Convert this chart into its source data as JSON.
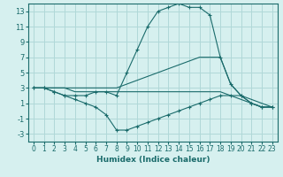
{
  "xlabel": "Humidex (Indice chaleur)",
  "bg_color": "#d6f0ef",
  "grid_color": "#b0d8d8",
  "line_color": "#1a6b6b",
  "xlim": [
    -0.5,
    23.5
  ],
  "ylim": [
    -4,
    14
  ],
  "xticks": [
    0,
    1,
    2,
    3,
    4,
    5,
    6,
    7,
    8,
    9,
    10,
    11,
    12,
    13,
    14,
    15,
    16,
    17,
    18,
    19,
    20,
    21,
    22,
    23
  ],
  "yticks": [
    -3,
    -1,
    1,
    3,
    5,
    7,
    9,
    11,
    13
  ],
  "series": [
    {
      "x": [
        0,
        1,
        2,
        3,
        4,
        5,
        6,
        7,
        8,
        9,
        10,
        11,
        12,
        13,
        14,
        15,
        16,
        17,
        18,
        19,
        20,
        21,
        22,
        23
      ],
      "y": [
        3,
        3,
        2.5,
        2,
        2,
        2,
        2.5,
        2.5,
        2,
        5,
        8,
        11,
        13,
        13.5,
        14,
        13.5,
        13.5,
        12.5,
        7,
        3.5,
        2,
        1,
        0.5,
        0.5
      ],
      "marker": "+"
    },
    {
      "x": [
        0,
        1,
        2,
        3,
        4,
        5,
        6,
        7,
        8,
        9,
        10,
        11,
        12,
        13,
        14,
        15,
        16,
        17,
        18,
        19,
        20,
        21,
        22,
        23
      ],
      "y": [
        3,
        3,
        3,
        3,
        3,
        3,
        3,
        3,
        3,
        3.5,
        4,
        4.5,
        5,
        5.5,
        6,
        6.5,
        7,
        7,
        7,
        3.5,
        2,
        1.5,
        1,
        0.5
      ],
      "marker": null
    },
    {
      "x": [
        0,
        1,
        2,
        3,
        4,
        5,
        6,
        7,
        8,
        9,
        10,
        11,
        12,
        13,
        14,
        15,
        16,
        17,
        18,
        19,
        20,
        21,
        22,
        23
      ],
      "y": [
        3,
        3,
        2.5,
        2,
        1.5,
        1,
        0.5,
        -0.5,
        -2.5,
        -2.5,
        -2,
        -1.5,
        -1,
        -0.5,
        0,
        0.5,
        1,
        1.5,
        2,
        2,
        2,
        1,
        0.5,
        0.5
      ],
      "marker": "+"
    },
    {
      "x": [
        0,
        1,
        2,
        3,
        4,
        5,
        6,
        7,
        8,
        9,
        10,
        11,
        12,
        13,
        14,
        15,
        16,
        17,
        18,
        19,
        20,
        21,
        22,
        23
      ],
      "y": [
        3,
        3,
        3,
        3,
        2.5,
        2.5,
        2.5,
        2.5,
        2.5,
        2.5,
        2.5,
        2.5,
        2.5,
        2.5,
        2.5,
        2.5,
        2.5,
        2.5,
        2.5,
        2,
        1.5,
        1,
        0.5,
        0.5
      ],
      "marker": null
    }
  ]
}
